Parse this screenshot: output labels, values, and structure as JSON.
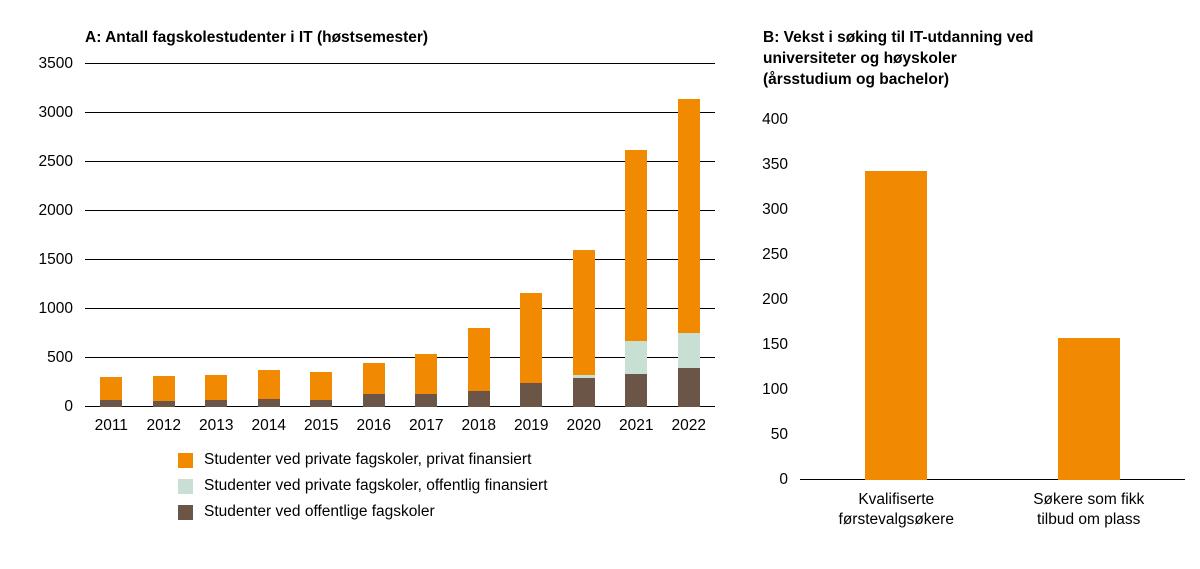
{
  "page": {
    "background": "#ffffff"
  },
  "chart_data": [
    {
      "id": "A",
      "type": "bar",
      "stacked": true,
      "title": "A: Antall fagskolestudenter i IT (høstsemester)",
      "categories": [
        "2011",
        "2012",
        "2013",
        "2014",
        "2015",
        "2016",
        "2017",
        "2018",
        "2019",
        "2020",
        "2021",
        "2022"
      ],
      "series": [
        {
          "name": "Studenter ved offentlige fagskoler",
          "color": "#6B5547",
          "values": [
            70,
            60,
            70,
            80,
            70,
            130,
            130,
            160,
            250,
            300,
            340,
            400
          ]
        },
        {
          "name": "Studenter ved private fagskoler, offentlig finansiert",
          "color": "#C8DFD3",
          "values": [
            0,
            0,
            0,
            0,
            0,
            0,
            0,
            0,
            0,
            30,
            330,
            360
          ]
        },
        {
          "name": "Studenter ved private fagskoler, privat finansiert",
          "color": "#F18A00",
          "values": [
            240,
            260,
            260,
            295,
            290,
            320,
            415,
            650,
            910,
            1270,
            1950,
            2380
          ]
        }
      ],
      "legend": [
        {
          "label": "Studenter ved private fagskoler, privat finansiert",
          "color": "#F18A00"
        },
        {
          "label": "Studenter ved private fagskoler, offentlig finansiert",
          "color": "#C8DFD3"
        },
        {
          "label": "Studenter ved offentlige fagskoler",
          "color": "#6B5547"
        }
      ],
      "ylim": [
        0,
        3500
      ],
      "ytick_step": 500,
      "grid": true,
      "legend_position": "bottom"
    },
    {
      "id": "B",
      "type": "bar",
      "stacked": false,
      "title": "B: Vekst i søking til IT-utdanning ved\nuniversiteter og høyskoler\n(årsstudium og bachelor)",
      "categories": [
        "Kvalifiserte\nførstevalgsøkere",
        "Søkere som fikk\ntilbud om plass"
      ],
      "series": [
        {
          "name": "Søkere",
          "color": "#F18A00",
          "values": [
            343,
            158
          ]
        }
      ],
      "ylim": [
        0,
        400
      ],
      "ytick_step": 50,
      "grid": false
    }
  ]
}
